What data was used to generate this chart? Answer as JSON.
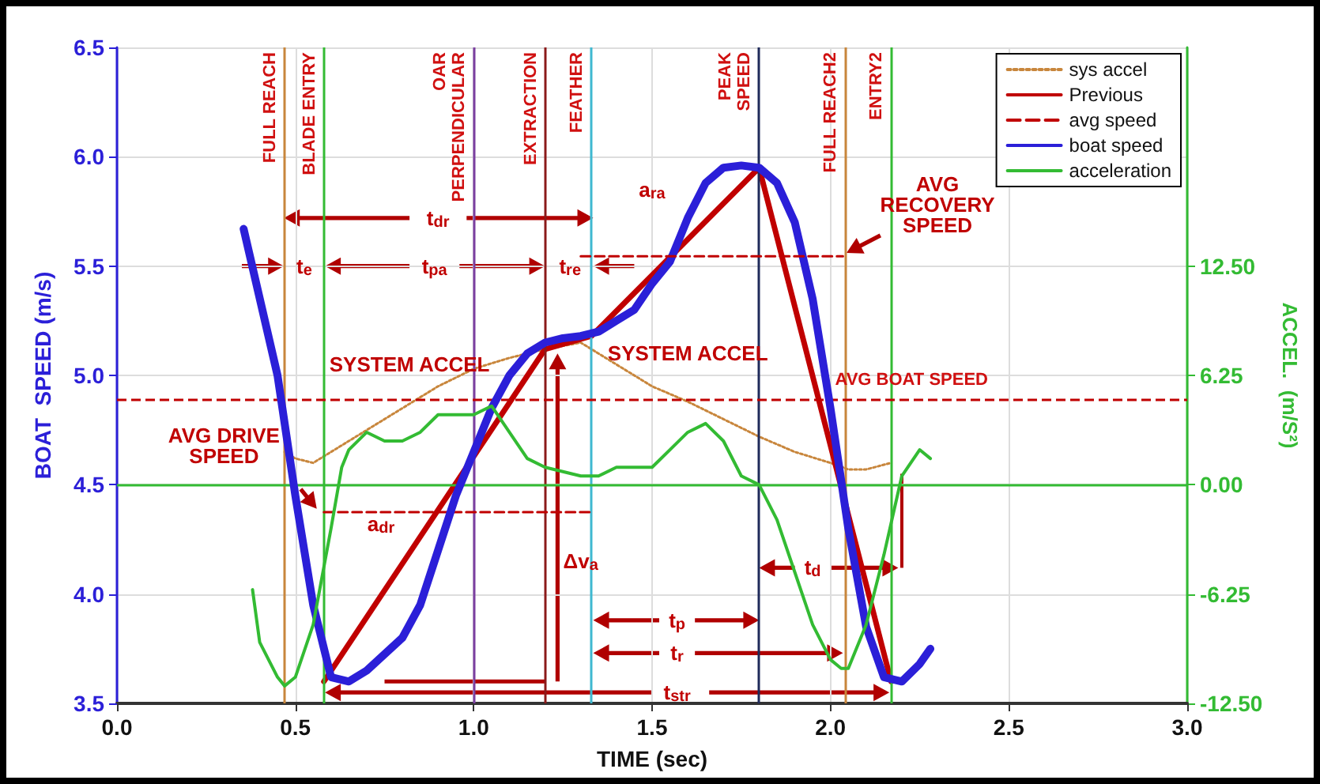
{
  "chart_data": {
    "type": "line",
    "xlabel": "TIME (sec)",
    "ylabel": "BOAT  SPEED (m/s)",
    "y2label": "ACCEL.  (m/S²)",
    "xlim": [
      0,
      3
    ],
    "xticks": [
      {
        "value": 0,
        "label": "0.0"
      },
      {
        "value": 0.5,
        "label": "0.5"
      },
      {
        "value": 1,
        "label": "1.0"
      },
      {
        "value": 1.5,
        "label": "1.5"
      },
      {
        "value": 2,
        "label": "2.0"
      },
      {
        "value": 2.5,
        "label": "2.5"
      },
      {
        "value": 3,
        "label": "3.0"
      }
    ],
    "ylim": [
      3.5,
      6.5
    ],
    "yticks": [
      3.5,
      {
        "value": 4,
        "label": "4.0"
      },
      4.5,
      {
        "value": 5,
        "label": "5.0"
      },
      5.5,
      {
        "value": 6,
        "label": "6.0"
      },
      6.5
    ],
    "y2lim": [
      -12.5,
      25
    ],
    "y2ticks": [
      {
        "value": -12.5,
        "label": "-12.50"
      },
      {
        "value": -6.25,
        "label": "-6.25"
      },
      {
        "value": 0,
        "label": "0.00"
      },
      {
        "value": 6.25,
        "label": "6.25"
      },
      {
        "value": 12.5,
        "label": "12.50"
      }
    ],
    "grid": true,
    "legend": "top right",
    "marker": "none",
    "series": [
      {
        "name": "sys accel",
        "color": "#c8863c",
        "line_style": "dotted",
        "x": [
          0.47,
          0.5,
          0.55,
          0.6,
          0.7,
          0.8,
          0.9,
          1.0,
          1.1,
          1.2,
          1.3,
          1.4,
          1.5,
          1.6,
          1.7,
          1.8,
          1.9,
          2.0,
          2.05,
          2.1,
          2.17
        ],
        "values": [
          4.65,
          4.62,
          4.6,
          4.65,
          4.75,
          4.85,
          4.95,
          5.03,
          5.08,
          5.12,
          5.15,
          5.05,
          4.95,
          4.88,
          4.8,
          4.72,
          4.65,
          4.6,
          4.57,
          4.57,
          4.6
        ]
      },
      {
        "name": "Previous",
        "color": "#c00000",
        "line_style": "solid",
        "x": [
          0.58,
          1.2,
          1.33,
          1.8,
          2.17
        ],
        "values": [
          3.6,
          5.12,
          5.18,
          5.95,
          3.6
        ]
      },
      {
        "name": "avg speed",
        "color": "#c00000",
        "line_style": "dashed",
        "x": [
          0.58,
          1.335
        ],
        "values": [
          4.375,
          4.375
        ]
      },
      {
        "name": "boat speed",
        "color": "#2b1fd8",
        "line_style": "solid",
        "x": [
          0.355,
          0.45,
          0.5,
          0.55,
          0.6,
          0.65,
          0.7,
          0.8,
          0.85,
          0.9,
          0.95,
          1.0,
          1.05,
          1.1,
          1.15,
          1.2,
          1.25,
          1.3,
          1.35,
          1.4,
          1.45,
          1.5,
          1.55,
          1.6,
          1.65,
          1.7,
          1.75,
          1.8,
          1.85,
          1.9,
          1.95,
          2.0,
          2.05,
          2.1,
          2.15,
          2.2,
          2.25,
          2.28
        ],
        "values": [
          5.67,
          5.0,
          4.45,
          3.95,
          3.62,
          3.6,
          3.65,
          3.8,
          3.95,
          4.2,
          4.45,
          4.65,
          4.85,
          5.0,
          5.1,
          5.15,
          5.17,
          5.18,
          5.2,
          5.25,
          5.3,
          5.42,
          5.52,
          5.72,
          5.88,
          5.95,
          5.96,
          5.95,
          5.88,
          5.7,
          5.35,
          4.85,
          4.3,
          3.85,
          3.62,
          3.6,
          3.68,
          3.75
        ]
      },
      {
        "name": "acceleration",
        "color": "#33bb33",
        "line_style": "solid",
        "axis": "y2",
        "x": [
          0.38,
          0.4,
          0.45,
          0.47,
          0.5,
          0.55,
          0.6,
          0.63,
          0.65,
          0.7,
          0.75,
          0.8,
          0.85,
          0.9,
          1.0,
          1.05,
          1.1,
          1.15,
          1.2,
          1.3,
          1.35,
          1.4,
          1.5,
          1.55,
          1.6,
          1.65,
          1.7,
          1.75,
          1.8,
          1.85,
          1.9,
          1.95,
          2.0,
          2.03,
          2.05,
          2.1,
          2.15,
          2.2,
          2.25,
          2.28
        ],
        "values": [
          -6,
          -9,
          -11,
          -11.5,
          -11,
          -8,
          -2.5,
          1,
          2,
          3,
          2.5,
          2.5,
          3,
          4,
          4,
          4.5,
          3,
          1.5,
          1,
          0.5,
          0.5,
          1,
          1,
          2,
          3,
          3.5,
          2.5,
          0.5,
          0,
          -2,
          -5,
          -8,
          -10,
          -10.5,
          -10.5,
          -8,
          -4,
          0.5,
          2,
          1.5
        ]
      },
      {
        "color": "#c00000",
        "line_style": "dashed",
        "x": [
          1.3,
          2.035
        ],
        "values": [
          5.545,
          5.545
        ]
      }
    ],
    "ref_lines": [
      {
        "axis": "x",
        "value": 0.468,
        "label": "FULL REACH",
        "color": "#c8863c"
      },
      {
        "axis": "x",
        "value": 0.583,
        "label": "BLADE ENTRY",
        "color": "#33bb33"
      },
      {
        "axis": "x",
        "value": 1.0,
        "label": "OAR\nPERPENDICULAR",
        "color": "#7b3fa0"
      },
      {
        "axis": "x",
        "value": 1.2,
        "label": "EXTRACTION",
        "color": "#8b1a1a"
      },
      {
        "axis": "x",
        "value": 1.335,
        "label": "FEATHER",
        "color": "#3fb8d0"
      },
      {
        "axis": "x",
        "value": 1.8,
        "label": "PEAK\nSPEED",
        "color": "#1f2a5a"
      },
      {
        "axis": "x",
        "value": 2.035,
        "label": "FULL REACH2",
        "color": "#c8863c"
      },
      {
        "axis": "x",
        "value": 2.165,
        "label": "ENTRY2",
        "color": "#33bb33"
      },
      {
        "axis": "y",
        "value": 4.89,
        "label": "AVG BOAT SPEED",
        "color": "#c00000",
        "line_style": "dashed"
      },
      {
        "axis": "y2",
        "value": 0,
        "color": "#33bb33"
      }
    ],
    "annotations": [
      "t$_{dr}$",
      "t$_{e}$",
      "t$_{pa}$",
      "t$_{re}$",
      "a$_{ra}$",
      "a$_{dr}$",
      "Δv$_{a}$",
      "t$_{p}$",
      "t$_{r}$",
      "t$_{str}$",
      "t$_{d}$",
      "SYSTEM ACCEL",
      "SYSTEM ACCEL",
      "AVG DRIVE\nSPEED",
      "AVG\nRECOVERY\nSPEED"
    ]
  }
}
